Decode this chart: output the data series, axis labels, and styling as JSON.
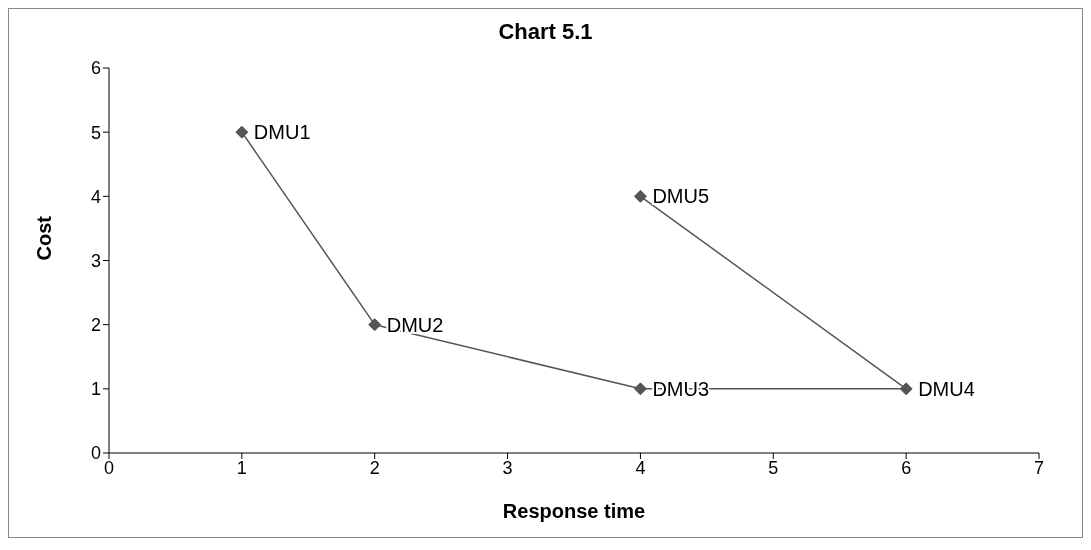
{
  "chart_data": {
    "type": "line",
    "title": "Chart 5.1",
    "xlabel": "Response time",
    "ylabel": "Cost",
    "series": [
      {
        "color": "#555555",
        "x": [
          1,
          2,
          4,
          6,
          4
        ],
        "values": [
          5,
          2,
          1,
          1,
          4
        ]
      }
    ],
    "xlim": [
      0,
      7
    ],
    "xticks": [
      0,
      1,
      2,
      3,
      4,
      5,
      6,
      7
    ],
    "ylim": [
      0,
      6
    ],
    "yticks": [
      0,
      1,
      2,
      3,
      4,
      5,
      6
    ],
    "marker": "diamond",
    "line_style": "solid",
    "grid": false,
    "legend": false,
    "annotations": [
      {
        "text": "DMU1",
        "x": 1,
        "y": 5
      },
      {
        "text": "DMU2",
        "x": 2,
        "y": 2
      },
      {
        "text": "DMU3",
        "x": 4,
        "y": 1
      },
      {
        "text": "DMU4",
        "x": 6,
        "y": 1
      },
      {
        "text": "DMU5",
        "x": 4,
        "y": 4
      }
    ]
  }
}
